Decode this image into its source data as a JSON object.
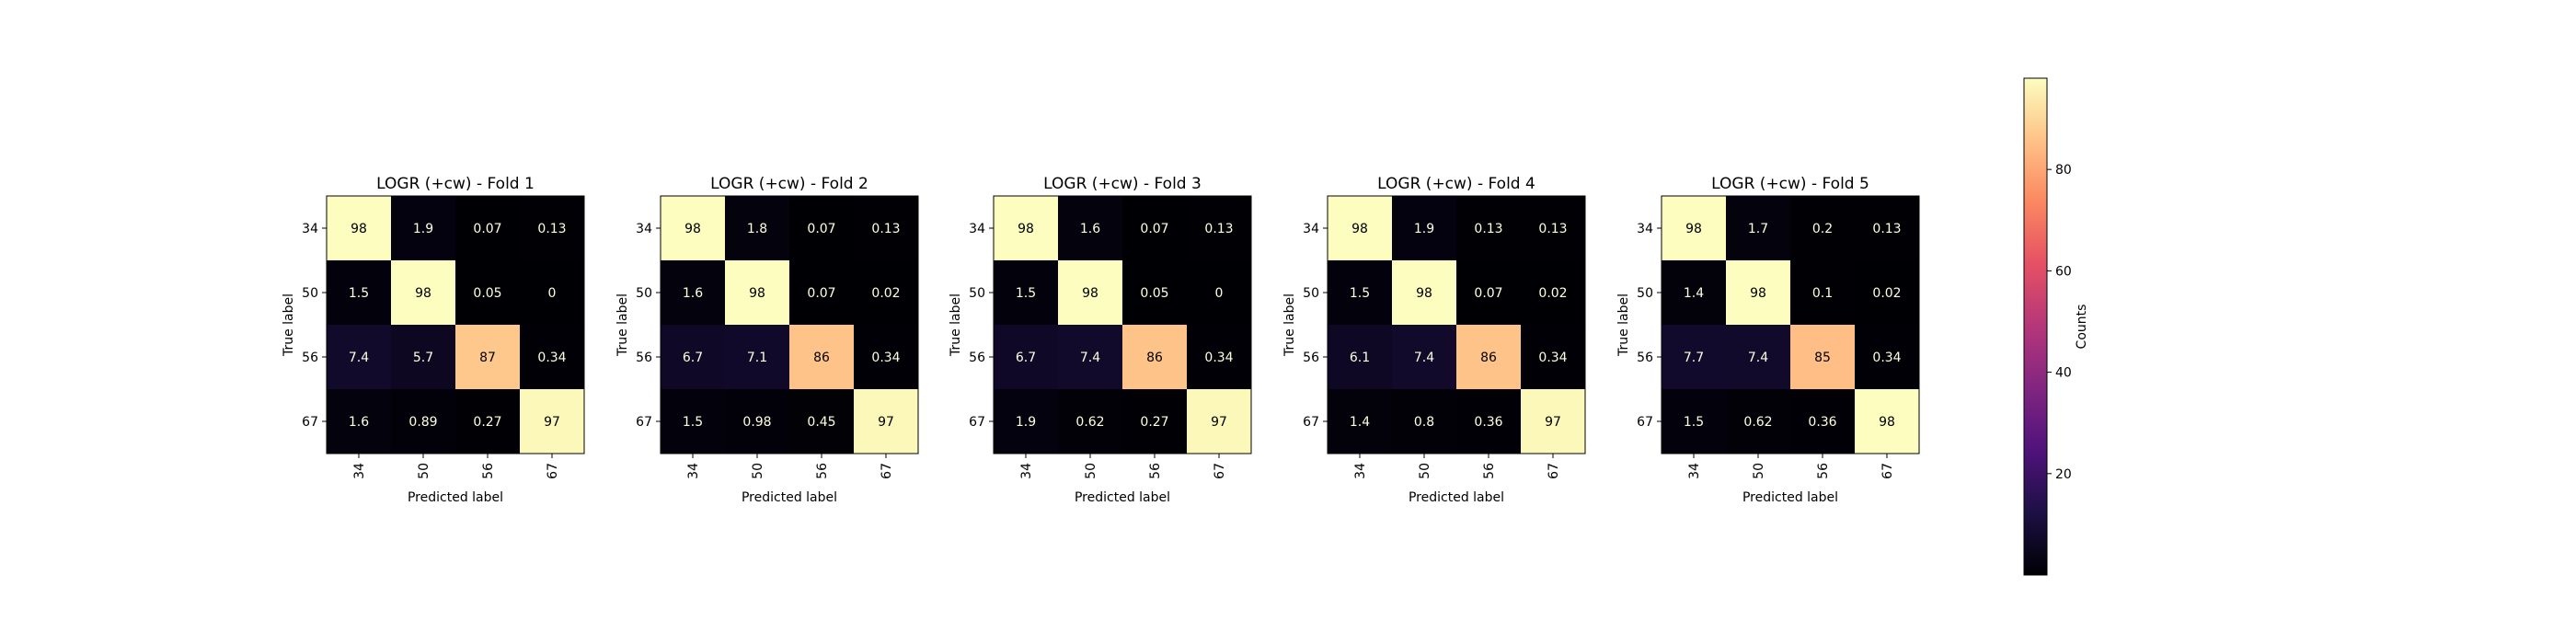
{
  "chart_data": [
    {
      "type": "heatmap",
      "title": "LOGR (+cw) - Fold 1",
      "xlabel": "Predicted label",
      "ylabel": "True label",
      "x_ticks": [
        "34",
        "50",
        "56",
        "67"
      ],
      "y_ticks": [
        "34",
        "50",
        "56",
        "67"
      ],
      "cell_labels": [
        [
          "98",
          "1.9",
          "0.07",
          "0.13"
        ],
        [
          "1.5",
          "98",
          "0.05",
          "0"
        ],
        [
          "7.4",
          "5.7",
          "87",
          "0.34"
        ],
        [
          "1.6",
          "0.89",
          "0.27",
          "97"
        ]
      ],
      "values": [
        [
          98,
          1.9,
          0.07,
          0.13
        ],
        [
          1.5,
          98,
          0.05,
          0
        ],
        [
          7.4,
          5.7,
          87,
          0.34
        ],
        [
          1.6,
          0.89,
          0.27,
          97
        ]
      ]
    },
    {
      "type": "heatmap",
      "title": "LOGR (+cw) - Fold 2",
      "xlabel": "Predicted label",
      "ylabel": "True label",
      "x_ticks": [
        "34",
        "50",
        "56",
        "67"
      ],
      "y_ticks": [
        "34",
        "50",
        "56",
        "67"
      ],
      "cell_labels": [
        [
          "98",
          "1.8",
          "0.07",
          "0.13"
        ],
        [
          "1.6",
          "98",
          "0.07",
          "0.02"
        ],
        [
          "6.7",
          "7.1",
          "86",
          "0.34"
        ],
        [
          "1.5",
          "0.98",
          "0.45",
          "97"
        ]
      ],
      "values": [
        [
          98,
          1.8,
          0.07,
          0.13
        ],
        [
          1.6,
          98,
          0.07,
          0.02
        ],
        [
          6.7,
          7.1,
          86,
          0.34
        ],
        [
          1.5,
          0.98,
          0.45,
          97
        ]
      ]
    },
    {
      "type": "heatmap",
      "title": "LOGR (+cw) - Fold 3",
      "xlabel": "Predicted label",
      "ylabel": "True label",
      "x_ticks": [
        "34",
        "50",
        "56",
        "67"
      ],
      "y_ticks": [
        "34",
        "50",
        "56",
        "67"
      ],
      "cell_labels": [
        [
          "98",
          "1.6",
          "0.07",
          "0.13"
        ],
        [
          "1.5",
          "98",
          "0.05",
          "0"
        ],
        [
          "6.7",
          "7.4",
          "86",
          "0.34"
        ],
        [
          "1.9",
          "0.62",
          "0.27",
          "97"
        ]
      ],
      "values": [
        [
          98,
          1.6,
          0.07,
          0.13
        ],
        [
          1.5,
          98,
          0.05,
          0
        ],
        [
          6.7,
          7.4,
          86,
          0.34
        ],
        [
          1.9,
          0.62,
          0.27,
          97
        ]
      ]
    },
    {
      "type": "heatmap",
      "title": "LOGR (+cw) - Fold 4",
      "xlabel": "Predicted label",
      "ylabel": "True label",
      "x_ticks": [
        "34",
        "50",
        "56",
        "67"
      ],
      "y_ticks": [
        "34",
        "50",
        "56",
        "67"
      ],
      "cell_labels": [
        [
          "98",
          "1.9",
          "0.13",
          "0.13"
        ],
        [
          "1.5",
          "98",
          "0.07",
          "0.02"
        ],
        [
          "6.1",
          "7.4",
          "86",
          "0.34"
        ],
        [
          "1.4",
          "0.8",
          "0.36",
          "97"
        ]
      ],
      "values": [
        [
          98,
          1.9,
          0.13,
          0.13
        ],
        [
          1.5,
          98,
          0.07,
          0.02
        ],
        [
          6.1,
          7.4,
          86,
          0.34
        ],
        [
          1.4,
          0.8,
          0.36,
          97
        ]
      ]
    },
    {
      "type": "heatmap",
      "title": "LOGR (+cw) - Fold 5",
      "xlabel": "Predicted label",
      "ylabel": "True label",
      "x_ticks": [
        "34",
        "50",
        "56",
        "67"
      ],
      "y_ticks": [
        "34",
        "50",
        "56",
        "67"
      ],
      "cell_labels": [
        [
          "98",
          "1.7",
          "0.2",
          "0.13"
        ],
        [
          "1.4",
          "98",
          "0.1",
          "0.02"
        ],
        [
          "7.7",
          "7.4",
          "85",
          "0.34"
        ],
        [
          "1.5",
          "0.62",
          "0.36",
          "98"
        ]
      ],
      "values": [
        [
          98,
          1.7,
          0.2,
          0.13
        ],
        [
          1.4,
          98,
          0.1,
          0.02
        ],
        [
          7.7,
          7.4,
          85,
          0.34
        ],
        [
          1.5,
          0.62,
          0.36,
          98
        ]
      ]
    }
  ],
  "colorbar": {
    "label": "Counts",
    "colormap": "magma",
    "range": [
      0,
      98
    ],
    "ticks": [
      20,
      40,
      60,
      80
    ],
    "tick_labels": [
      "20",
      "40",
      "60",
      "80"
    ]
  },
  "colors": {
    "light_text": "#ffffe0",
    "dark_text": "#000000"
  }
}
